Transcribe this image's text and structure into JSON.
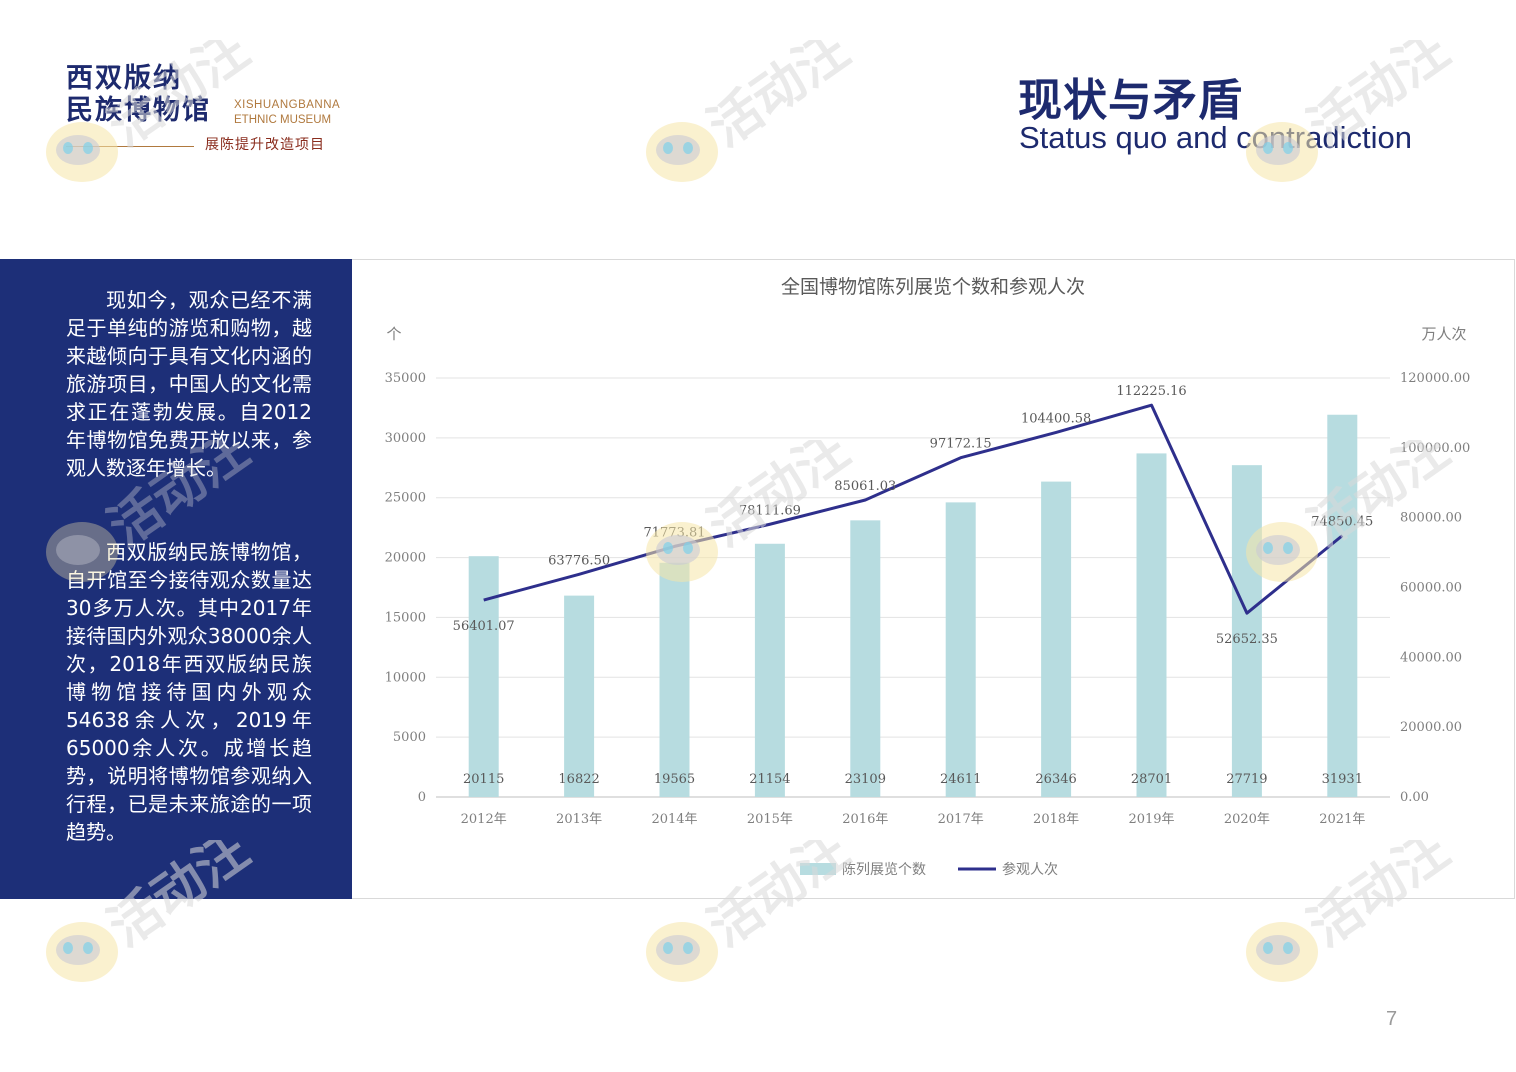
{
  "logo": {
    "line1": "西双版纳",
    "line2": "民族博物馆",
    "en1": "XISHUANGBANNA",
    "en2": "ETHNIC MUSEUM",
    "sub": "展陈提升改造项目"
  },
  "header": {
    "title_cn": "现状与矛盾",
    "title_en": "Status quo and contradiction"
  },
  "panel": {
    "para1": "现如今，观众已经不满足于单纯的游览和购物，越来越倾向于具有文化内涵的旅游项目，中国人的文化需求正在蓬勃发展。自2012年博物馆免费开放以来，参观人数逐年增长。",
    "para2": "西双版纳民族博物馆，自开馆至今接待观众数量达30多万人次。其中2017年接待国内外观众38000余人次，2018年西双版纳民族博物馆接待国内外观众54638余人次，2019年65000余人次。成增长趋势，说明将博物馆参观纳入行程，已是未来旅途的一项趋势。"
  },
  "chart_data": {
    "type": "bar",
    "title": "全国博物馆陈列展览个数和参观人次",
    "ylabel": "个",
    "y2label": "万人次",
    "categories": [
      "2012年",
      "2013年",
      "2014年",
      "2015年",
      "2016年",
      "2017年",
      "2018年",
      "2019年",
      "2020年",
      "2021年"
    ],
    "ylim": [
      0,
      35000
    ],
    "yticks": [
      "0",
      "5000",
      "10000",
      "15000",
      "20000",
      "25000",
      "30000",
      "35000"
    ],
    "y2lim": [
      0,
      120000
    ],
    "y2ticks": [
      "0.00",
      "20000.00",
      "40000.00",
      "60000.00",
      "80000.00",
      "100000.00",
      "120000.00"
    ],
    "series": [
      {
        "name": "陈列展览个数",
        "kind": "bar",
        "axis": "left",
        "color": "#b7dce0",
        "values": [
          20115,
          16822,
          19565,
          21154,
          23109,
          24611,
          26346,
          28701,
          27719,
          31931
        ],
        "labels": [
          "20115",
          "16822",
          "19565",
          "21154",
          "23109",
          "24611",
          "26346",
          "28701",
          "27719",
          "31931"
        ]
      },
      {
        "name": "参观人次",
        "kind": "line",
        "axis": "right",
        "color": "#2e2f8c",
        "values": [
          56401.07,
          63776.5,
          71773.81,
          78111.69,
          85061.03,
          97172.15,
          104400.58,
          112225.16,
          52652.35,
          74850.45
        ],
        "labels": [
          "56401.07",
          "63776.50",
          "71773.81",
          "78111.69",
          "85061.03",
          "97172.15",
          "104400.58",
          "112225.16",
          "52652.35",
          "74850.45"
        ]
      }
    ],
    "grid": true,
    "legend": "bottom"
  },
  "watermark": {
    "text": "活动汪"
  },
  "page": {
    "number": "7"
  }
}
